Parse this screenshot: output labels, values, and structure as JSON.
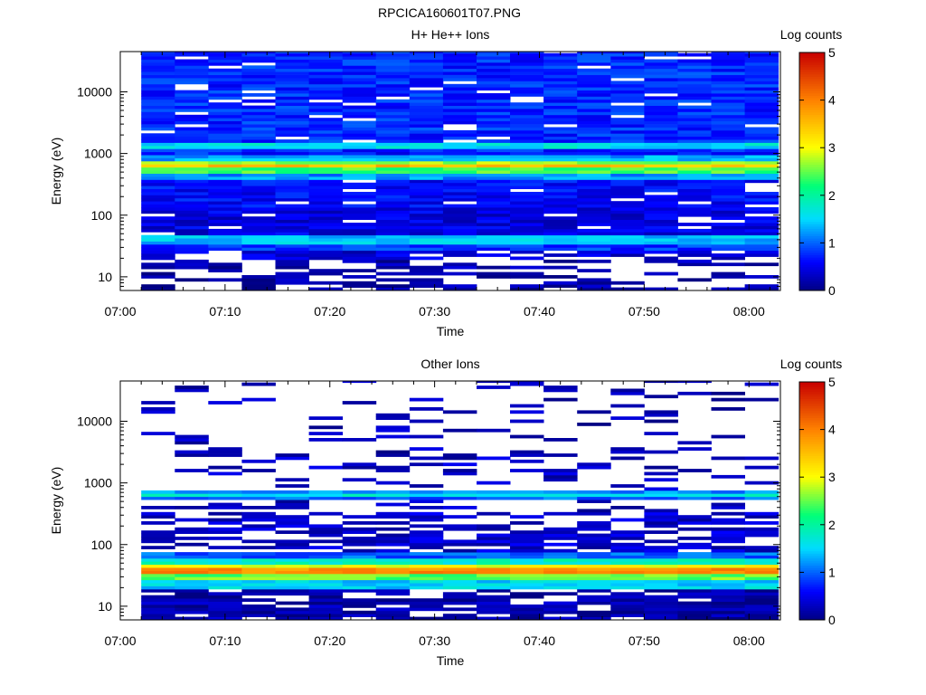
{
  "figure_title": "RPCICA160601T07.PNG",
  "chart_data": [
    {
      "type": "heatmap",
      "title": "H+ He++ Ions",
      "xlabel": "Time",
      "ylabel": "Energy (eV)",
      "x_ticks": [
        "07:00",
        "07:10",
        "07:20",
        "07:30",
        "07:40",
        "07:50",
        "08:00"
      ],
      "y_ticks": [
        "10",
        "100",
        "1000",
        "10000"
      ],
      "y_scale": "log",
      "ylim": [
        6,
        45000
      ],
      "xlim": [
        "07:00",
        "08:03"
      ],
      "x_bins_start": "07:02",
      "x_bin_minutes": 3.2,
      "x_bin_count": 19,
      "colorbar_label": "Log counts",
      "colorbar_ticks": [
        "0",
        "1",
        "2",
        "3",
        "4",
        "5"
      ],
      "colorbar_range": [
        0,
        5
      ],
      "colormap": "rainbow (dark blue → blue → cyan → green → yellow → orange → red)",
      "empty_color": "#ffffff",
      "profile": [
        {
          "e_low": 6,
          "e_high": 12,
          "log_counts": 0.15,
          "fill": 0.55
        },
        {
          "e_low": 12,
          "e_high": 20,
          "log_counts": 0.2,
          "fill": 0.45
        },
        {
          "e_low": 20,
          "e_high": 28,
          "log_counts": 0.4,
          "fill": 0.75
        },
        {
          "e_low": 28,
          "e_high": 35,
          "log_counts": 0.8,
          "fill": 1.0
        },
        {
          "e_low": 35,
          "e_high": 46,
          "log_counts": 1.4,
          "fill": 1.0
        },
        {
          "e_low": 46,
          "e_high": 130,
          "log_counts": 0.45,
          "fill": 0.9
        },
        {
          "e_low": 130,
          "e_high": 400,
          "log_counts": 0.6,
          "fill": 0.92
        },
        {
          "e_low": 400,
          "e_high": 500,
          "log_counts": 1.2,
          "fill": 1.0
        },
        {
          "e_low": 500,
          "e_high": 570,
          "log_counts": 2.4,
          "fill": 1.0
        },
        {
          "e_low": 570,
          "e_high": 650,
          "log_counts": 3.5,
          "fill": 1.0
        },
        {
          "e_low": 650,
          "e_high": 760,
          "log_counts": 2.7,
          "fill": 1.0
        },
        {
          "e_low": 760,
          "e_high": 900,
          "log_counts": 1.3,
          "fill": 1.0
        },
        {
          "e_low": 900,
          "e_high": 1200,
          "log_counts": 0.7,
          "fill": 1.0
        },
        {
          "e_low": 1200,
          "e_high": 1500,
          "log_counts": 1.6,
          "fill": 1.0
        },
        {
          "e_low": 1500,
          "e_high": 45000,
          "log_counts": 0.75,
          "fill": 0.93
        }
      ]
    },
    {
      "type": "heatmap",
      "title": "Other Ions",
      "xlabel": "Time",
      "ylabel": "Energy (eV)",
      "x_ticks": [
        "07:00",
        "07:10",
        "07:20",
        "07:30",
        "07:40",
        "07:50",
        "08:00"
      ],
      "y_ticks": [
        "10",
        "100",
        "1000",
        "10000"
      ],
      "y_scale": "log",
      "ylim": [
        6,
        45000
      ],
      "xlim": [
        "07:00",
        "08:03"
      ],
      "x_bins_start": "07:02",
      "x_bin_minutes": 3.2,
      "x_bin_count": 19,
      "colorbar_label": "Log counts",
      "colorbar_ticks": [
        "0",
        "1",
        "2",
        "3",
        "4",
        "5"
      ],
      "colorbar_range": [
        0,
        5
      ],
      "colormap": "rainbow (dark blue → blue → cyan → green → yellow → orange → red)",
      "empty_color": "#ffffff",
      "profile": [
        {
          "e_low": 6,
          "e_high": 20,
          "log_counts": 0.2,
          "fill": 0.75
        },
        {
          "e_low": 20,
          "e_high": 26,
          "log_counts": 1.5,
          "fill": 1.0
        },
        {
          "e_low": 26,
          "e_high": 32,
          "log_counts": 2.5,
          "fill": 1.0
        },
        {
          "e_low": 32,
          "e_high": 42,
          "log_counts": 3.9,
          "fill": 1.0
        },
        {
          "e_low": 42,
          "e_high": 50,
          "log_counts": 3.0,
          "fill": 1.0
        },
        {
          "e_low": 50,
          "e_high": 60,
          "log_counts": 1.8,
          "fill": 1.0
        },
        {
          "e_low": 60,
          "e_high": 75,
          "log_counts": 1.0,
          "fill": 1.0
        },
        {
          "e_low": 75,
          "e_high": 350,
          "log_counts": 0.35,
          "fill": 0.6
        },
        {
          "e_low": 350,
          "e_high": 540,
          "log_counts": 0.25,
          "fill": 0.25
        },
        {
          "e_low": 540,
          "e_high": 600,
          "log_counts": 1.0,
          "fill": 1.0
        },
        {
          "e_low": 600,
          "e_high": 690,
          "log_counts": 1.7,
          "fill": 1.0
        },
        {
          "e_low": 690,
          "e_high": 780,
          "log_counts": 1.2,
          "fill": 1.0
        },
        {
          "e_low": 780,
          "e_high": 2600,
          "log_counts": 0.3,
          "fill": 0.2
        },
        {
          "e_low": 2600,
          "e_high": 2800,
          "log_counts": 0.7,
          "fill": 1.0
        },
        {
          "e_low": 2800,
          "e_high": 45000,
          "log_counts": 0.25,
          "fill": 0.15
        }
      ]
    }
  ]
}
